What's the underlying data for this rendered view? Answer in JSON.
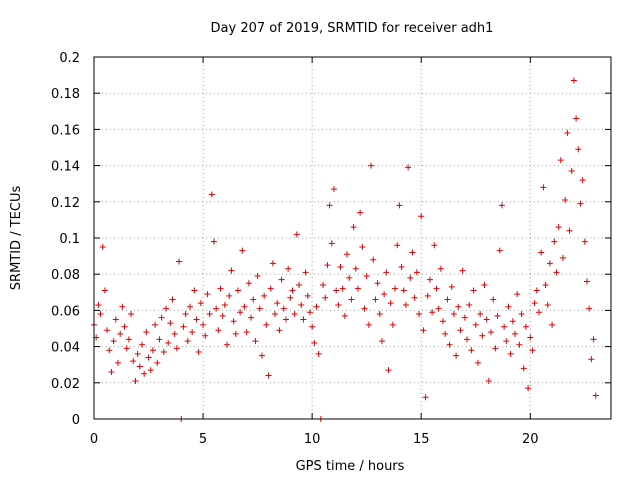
{
  "chart_data": {
    "type": "scatter",
    "title": "Day 207 of 2019, SRMTID for receiver adh1",
    "xlabel": "GPS time / hours",
    "ylabel": "SRMTID / TECUs",
    "xlim": [
      0,
      23.7
    ],
    "ylim": [
      0,
      0.2
    ],
    "x_ticks": [
      0,
      5,
      10,
      15,
      20
    ],
    "y_ticks": [
      0,
      0.02,
      0.04,
      0.06,
      0.08,
      0.1,
      0.12,
      0.14,
      0.16,
      0.18,
      0.2
    ],
    "x_tick_labels": [
      "0",
      "5",
      "10",
      "15",
      "20"
    ],
    "y_tick_labels": [
      "0",
      "0.02",
      "0.04",
      "0.06",
      "0.08",
      "0.1",
      "0.12",
      "0.14",
      "0.16",
      "0.18",
      "0.2"
    ],
    "grid": true,
    "marker": "+",
    "color": "#e00000",
    "series": [
      {
        "name": "adh1",
        "points": [
          [
            0.0,
            0.052
          ],
          [
            0.1,
            0.045
          ],
          [
            0.2,
            0.063
          ],
          [
            0.3,
            0.058
          ],
          [
            0.4,
            0.095
          ],
          [
            0.5,
            0.071
          ],
          [
            0.6,
            0.049
          ],
          [
            0.7,
            0.038
          ],
          [
            0.8,
            0.026
          ],
          [
            0.9,
            0.043
          ],
          [
            1.0,
            0.055
          ],
          [
            1.1,
            0.031
          ],
          [
            1.2,
            0.047
          ],
          [
            1.3,
            0.062
          ],
          [
            1.4,
            0.051
          ],
          [
            1.5,
            0.039
          ],
          [
            1.6,
            0.044
          ],
          [
            1.7,
            0.058
          ],
          [
            1.8,
            0.032
          ],
          [
            1.9,
            0.021
          ],
          [
            2.0,
            0.036
          ],
          [
            2.1,
            0.029
          ],
          [
            2.2,
            0.041
          ],
          [
            2.3,
            0.025
          ],
          [
            2.4,
            0.048
          ],
          [
            2.5,
            0.034
          ],
          [
            2.6,
            0.027
          ],
          [
            2.7,
            0.038
          ],
          [
            2.8,
            0.052
          ],
          [
            2.9,
            0.031
          ],
          [
            3.0,
            0.044
          ],
          [
            3.1,
            0.056
          ],
          [
            3.2,
            0.037
          ],
          [
            3.3,
            0.061
          ],
          [
            3.4,
            0.042
          ],
          [
            3.5,
            0.053
          ],
          [
            3.6,
            0.066
          ],
          [
            3.7,
            0.047
          ],
          [
            3.8,
            0.039
          ],
          [
            3.9,
            0.087
          ],
          [
            4.0,
            0.0
          ],
          [
            4.1,
            0.051
          ],
          [
            4.2,
            0.058
          ],
          [
            4.3,
            0.043
          ],
          [
            4.4,
            0.062
          ],
          [
            4.5,
            0.048
          ],
          [
            4.6,
            0.071
          ],
          [
            4.7,
            0.055
          ],
          [
            4.8,
            0.037
          ],
          [
            4.9,
            0.064
          ],
          [
            5.0,
            0.052
          ],
          [
            5.1,
            0.046
          ],
          [
            5.2,
            0.069
          ],
          [
            5.3,
            0.058
          ],
          [
            5.4,
            0.124
          ],
          [
            5.5,
            0.098
          ],
          [
            5.6,
            0.061
          ],
          [
            5.7,
            0.049
          ],
          [
            5.8,
            0.072
          ],
          [
            5.9,
            0.057
          ],
          [
            6.0,
            0.063
          ],
          [
            6.1,
            0.041
          ],
          [
            6.2,
            0.068
          ],
          [
            6.3,
            0.082
          ],
          [
            6.4,
            0.054
          ],
          [
            6.5,
            0.047
          ],
          [
            6.6,
            0.071
          ],
          [
            6.7,
            0.059
          ],
          [
            6.8,
            0.093
          ],
          [
            6.9,
            0.062
          ],
          [
            7.0,
            0.048
          ],
          [
            7.1,
            0.075
          ],
          [
            7.2,
            0.056
          ],
          [
            7.3,
            0.066
          ],
          [
            7.4,
            0.043
          ],
          [
            7.5,
            0.079
          ],
          [
            7.6,
            0.061
          ],
          [
            7.7,
            0.035
          ],
          [
            7.8,
            0.068
          ],
          [
            7.9,
            0.052
          ],
          [
            8.0,
            0.024
          ],
          [
            8.1,
            0.072
          ],
          [
            8.2,
            0.086
          ],
          [
            8.3,
            0.058
          ],
          [
            8.4,
            0.064
          ],
          [
            8.5,
            0.049
          ],
          [
            8.6,
            0.077
          ],
          [
            8.7,
            0.061
          ],
          [
            8.8,
            0.055
          ],
          [
            8.9,
            0.083
          ],
          [
            9.0,
            0.067
          ],
          [
            9.1,
            0.071
          ],
          [
            9.2,
            0.058
          ],
          [
            9.3,
            0.102
          ],
          [
            9.4,
            0.074
          ],
          [
            9.5,
            0.063
          ],
          [
            9.6,
            0.055
          ],
          [
            9.7,
            0.081
          ],
          [
            9.8,
            0.068
          ],
          [
            9.9,
            0.059
          ],
          [
            10.0,
            0.051
          ],
          [
            10.1,
            0.042
          ],
          [
            10.2,
            0.062
          ],
          [
            10.3,
            0.036
          ],
          [
            10.4,
            0.0
          ],
          [
            10.5,
            0.074
          ],
          [
            10.6,
            0.067
          ],
          [
            10.7,
            0.085
          ],
          [
            10.8,
            0.118
          ],
          [
            10.9,
            0.097
          ],
          [
            11.0,
            0.127
          ],
          [
            11.1,
            0.071
          ],
          [
            11.2,
            0.063
          ],
          [
            11.3,
            0.084
          ],
          [
            11.4,
            0.072
          ],
          [
            11.5,
            0.057
          ],
          [
            11.6,
            0.091
          ],
          [
            11.7,
            0.078
          ],
          [
            11.8,
            0.066
          ],
          [
            11.9,
            0.106
          ],
          [
            12.0,
            0.083
          ],
          [
            12.1,
            0.072
          ],
          [
            12.2,
            0.114
          ],
          [
            12.3,
            0.095
          ],
          [
            12.4,
            0.061
          ],
          [
            12.5,
            0.079
          ],
          [
            12.6,
            0.052
          ],
          [
            12.7,
            0.14
          ],
          [
            12.8,
            0.088
          ],
          [
            12.9,
            0.066
          ],
          [
            13.0,
            0.075
          ],
          [
            13.1,
            0.058
          ],
          [
            13.2,
            0.043
          ],
          [
            13.3,
            0.069
          ],
          [
            13.4,
            0.081
          ],
          [
            13.5,
            0.027
          ],
          [
            13.6,
            0.064
          ],
          [
            13.7,
            0.052
          ],
          [
            13.8,
            0.072
          ],
          [
            13.9,
            0.096
          ],
          [
            14.0,
            0.118
          ],
          [
            14.1,
            0.084
          ],
          [
            14.2,
            0.071
          ],
          [
            14.3,
            0.063
          ],
          [
            14.4,
            0.139
          ],
          [
            14.5,
            0.078
          ],
          [
            14.6,
            0.092
          ],
          [
            14.7,
            0.067
          ],
          [
            14.8,
            0.081
          ],
          [
            14.9,
            0.058
          ],
          [
            15.0,
            0.112
          ],
          [
            15.1,
            0.049
          ],
          [
            15.2,
            0.012
          ],
          [
            15.3,
            0.068
          ],
          [
            15.4,
            0.077
          ],
          [
            15.5,
            0.059
          ],
          [
            15.6,
            0.096
          ],
          [
            15.7,
            0.072
          ],
          [
            15.8,
            0.061
          ],
          [
            15.9,
            0.083
          ],
          [
            16.0,
            0.054
          ],
          [
            16.1,
            0.047
          ],
          [
            16.2,
            0.066
          ],
          [
            16.3,
            0.041
          ],
          [
            16.4,
            0.073
          ],
          [
            16.5,
            0.058
          ],
          [
            16.6,
            0.035
          ],
          [
            16.7,
            0.062
          ],
          [
            16.8,
            0.049
          ],
          [
            16.9,
            0.082
          ],
          [
            17.0,
            0.056
          ],
          [
            17.1,
            0.044
          ],
          [
            17.2,
            0.063
          ],
          [
            17.3,
            0.038
          ],
          [
            17.4,
            0.071
          ],
          [
            17.5,
            0.052
          ],
          [
            17.6,
            0.031
          ],
          [
            17.7,
            0.058
          ],
          [
            17.8,
            0.046
          ],
          [
            17.9,
            0.074
          ],
          [
            18.0,
            0.055
          ],
          [
            18.1,
            0.021
          ],
          [
            18.2,
            0.048
          ],
          [
            18.3,
            0.066
          ],
          [
            18.4,
            0.039
          ],
          [
            18.5,
            0.057
          ],
          [
            18.6,
            0.093
          ],
          [
            18.7,
            0.118
          ],
          [
            18.8,
            0.051
          ],
          [
            18.9,
            0.043
          ],
          [
            19.0,
            0.062
          ],
          [
            19.1,
            0.036
          ],
          [
            19.2,
            0.054
          ],
          [
            19.3,
            0.047
          ],
          [
            19.4,
            0.069
          ],
          [
            19.5,
            0.041
          ],
          [
            19.6,
            0.058
          ],
          [
            19.7,
            0.028
          ],
          [
            19.8,
            0.051
          ],
          [
            19.9,
            0.017
          ],
          [
            20.0,
            0.045
          ],
          [
            20.1,
            0.038
          ],
          [
            20.2,
            0.064
          ],
          [
            20.3,
            0.071
          ],
          [
            20.4,
            0.059
          ],
          [
            20.5,
            0.092
          ],
          [
            20.6,
            0.128
          ],
          [
            20.7,
            0.074
          ],
          [
            20.8,
            0.063
          ],
          [
            20.9,
            0.086
          ],
          [
            21.0,
            0.052
          ],
          [
            21.1,
            0.098
          ],
          [
            21.2,
            0.081
          ],
          [
            21.3,
            0.106
          ],
          [
            21.4,
            0.143
          ],
          [
            21.5,
            0.089
          ],
          [
            21.6,
            0.121
          ],
          [
            21.7,
            0.158
          ],
          [
            21.8,
            0.104
          ],
          [
            21.9,
            0.137
          ],
          [
            22.0,
            0.187
          ],
          [
            22.1,
            0.166
          ],
          [
            22.2,
            0.149
          ],
          [
            22.3,
            0.119
          ],
          [
            22.4,
            0.132
          ],
          [
            22.5,
            0.098
          ],
          [
            22.6,
            0.076
          ],
          [
            22.7,
            0.061
          ],
          [
            22.8,
            0.033
          ],
          [
            22.9,
            0.044
          ],
          [
            23.0,
            0.013
          ]
        ]
      }
    ]
  }
}
